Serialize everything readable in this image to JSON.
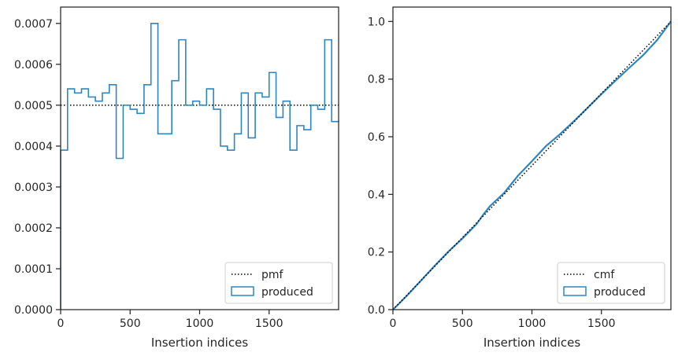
{
  "colors": {
    "series": "#2e86c1",
    "reference": "#000000",
    "axes": "#262626"
  },
  "chart_data": [
    {
      "type": "line",
      "chart_style": "histogram-step",
      "xlabel": "Insertion indices",
      "ylabel": "",
      "xlim": [
        0,
        2000
      ],
      "ylim": [
        0,
        0.00074
      ],
      "xticks": [
        0,
        500,
        1000,
        1500
      ],
      "xtick_labels": [
        "0",
        "500",
        "1000",
        "1500"
      ],
      "yticks": [
        0,
        0.0001,
        0.0002,
        0.0003,
        0.0004,
        0.0005,
        0.0006,
        0.0007
      ],
      "ytick_labels": [
        "0.0000",
        "0.0001",
        "0.0002",
        "0.0003",
        "0.0004",
        "0.0005",
        "0.0006",
        "0.0007"
      ],
      "legend_position": "lower-right",
      "reference": {
        "name": "pmf",
        "y": 0.0005
      },
      "series": [
        {
          "name": "produced",
          "bin_edges": [
            0,
            50,
            100,
            150,
            200,
            250,
            300,
            350,
            400,
            450,
            500,
            550,
            600,
            650,
            700,
            750,
            800,
            850,
            900,
            950,
            1000,
            1050,
            1100,
            1150,
            1200,
            1250,
            1300,
            1350,
            1400,
            1450,
            1500,
            1550,
            1600,
            1650,
            1700,
            1750,
            1800,
            1850,
            1900,
            1950,
            2000
          ],
          "values": [
            0.00039,
            0.00054,
            0.00053,
            0.00054,
            0.00052,
            0.00051,
            0.00053,
            0.00055,
            0.00037,
            0.0005,
            0.00049,
            0.00048,
            0.00055,
            0.0007,
            0.00043,
            0.00043,
            0.00056,
            0.00066,
            0.0005,
            0.00051,
            0.0005,
            0.00054,
            0.00049,
            0.0004,
            0.00039,
            0.00043,
            0.00053,
            0.00042,
            0.00053,
            0.00052,
            0.00058,
            0.00047,
            0.00051,
            0.00039,
            0.00045,
            0.00044,
            0.0005,
            0.00049,
            0.00066,
            0.00046
          ]
        }
      ]
    },
    {
      "type": "line",
      "xlabel": "Insertion indices",
      "ylabel": "",
      "xlim": [
        0,
        2000
      ],
      "ylim": [
        0,
        1.05
      ],
      "xticks": [
        0,
        500,
        1000,
        1500
      ],
      "xtick_labels": [
        "0",
        "500",
        "1000",
        "1500"
      ],
      "yticks": [
        0,
        0.2,
        0.4,
        0.6,
        0.8,
        1.0
      ],
      "ytick_labels": [
        "0.0",
        "0.2",
        "0.4",
        "0.6",
        "0.8",
        "1.0"
      ],
      "legend_position": "lower-right",
      "reference": {
        "name": "cmf",
        "points": [
          [
            0,
            0
          ],
          [
            2000,
            1.0
          ]
        ]
      },
      "series": [
        {
          "name": "produced",
          "x": [
            0,
            100,
            200,
            300,
            400,
            500,
            600,
            650,
            700,
            800,
            850,
            900,
            1000,
            1100,
            1200,
            1300,
            1400,
            1500,
            1600,
            1700,
            1800,
            1900,
            2000
          ],
          "values": [
            0,
            0.048,
            0.1,
            0.152,
            0.202,
            0.247,
            0.296,
            0.33,
            0.36,
            0.405,
            0.435,
            0.465,
            0.515,
            0.567,
            0.608,
            0.653,
            0.7,
            0.748,
            0.794,
            0.839,
            0.883,
            0.935,
            1.0
          ]
        }
      ]
    }
  ]
}
